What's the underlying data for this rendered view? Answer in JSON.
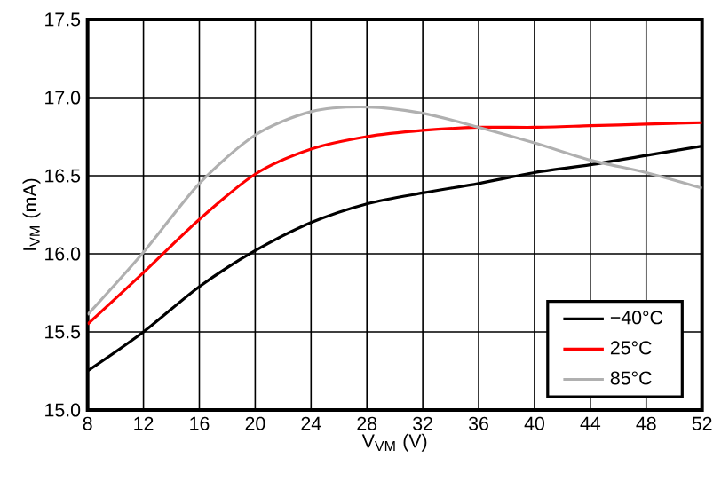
{
  "chart_data": {
    "type": "line",
    "xlabel": "V$_{VM}$ (V)",
    "ylabel": "I$_{VM}$ (mA)",
    "x": [
      8,
      12,
      16,
      20,
      24,
      28,
      32,
      36,
      40,
      44,
      48,
      52
    ],
    "series": [
      {
        "name": "−40°C",
        "color": "#000000",
        "values": [
          15.25,
          15.5,
          15.79,
          16.02,
          16.2,
          16.32,
          16.39,
          16.45,
          16.52,
          16.57,
          16.63,
          16.69
        ]
      },
      {
        "name": "25°C",
        "color": "#ff0000",
        "values": [
          15.55,
          15.88,
          16.22,
          16.51,
          16.67,
          16.75,
          16.79,
          16.81,
          16.81,
          16.82,
          16.83,
          16.84
        ]
      },
      {
        "name": "85°C",
        "color": "#b0b0b0",
        "values": [
          15.61,
          16.01,
          16.45,
          16.76,
          16.91,
          16.94,
          16.9,
          16.81,
          16.71,
          16.6,
          16.52,
          16.42
        ]
      }
    ],
    "xlim": [
      8,
      52
    ],
    "xticks": [
      8,
      12,
      16,
      20,
      24,
      28,
      32,
      36,
      40,
      44,
      48,
      52
    ],
    "ylim": [
      15.0,
      17.5
    ],
    "yticks": [
      {
        "value": 15.0,
        "label": "15.0"
      },
      {
        "value": 15.5,
        "label": "15.5"
      },
      {
        "value": 16.0,
        "label": "16.0"
      },
      {
        "value": 16.5,
        "label": "16.5"
      },
      {
        "value": 17.0,
        "label": "17.0"
      },
      {
        "value": 17.5,
        "label": "17.5"
      }
    ],
    "grid": true,
    "legend": "bottom right",
    "marker": "none",
    "line_style": "solid"
  }
}
